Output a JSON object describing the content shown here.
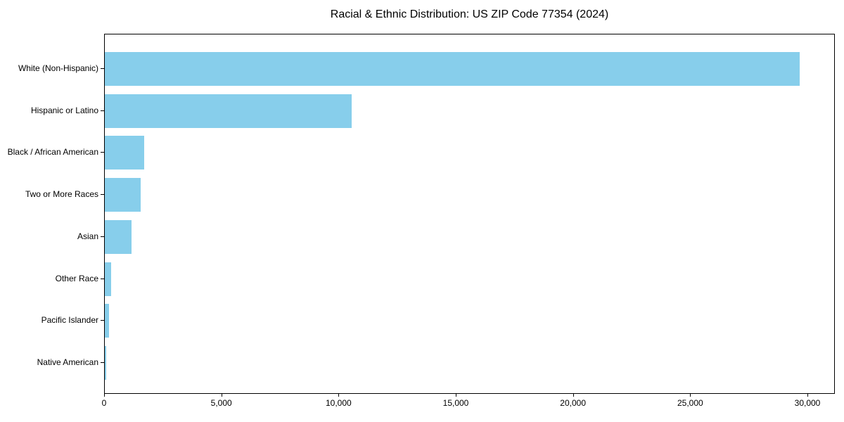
{
  "chart_data": {
    "type": "bar",
    "orientation": "horizontal",
    "title": "Racial & Ethnic Distribution: US ZIP Code 77354 (2024)",
    "xlabel": "",
    "ylabel": "",
    "categories": [
      "White (Non-Hispanic)",
      "Hispanic or Latino",
      "Black / African American",
      "Two or More Races",
      "Asian",
      "Other Race",
      "Pacific Islander",
      "Native American"
    ],
    "values": [
      29630,
      10540,
      1670,
      1520,
      1150,
      270,
      180,
      45
    ],
    "xlim": [
      0,
      31170
    ],
    "xticks": [
      0,
      5000,
      10000,
      15000,
      20000,
      25000,
      30000
    ],
    "xtick_labels": [
      "0",
      "5,000",
      "10,000",
      "15,000",
      "20,000",
      "25,000",
      "30,000"
    ],
    "bar_color": "#87CEEB",
    "axis_color": "#000000",
    "text_color": "#000000",
    "background_color": "#ffffff",
    "grid": false,
    "legend_position": "none"
  }
}
